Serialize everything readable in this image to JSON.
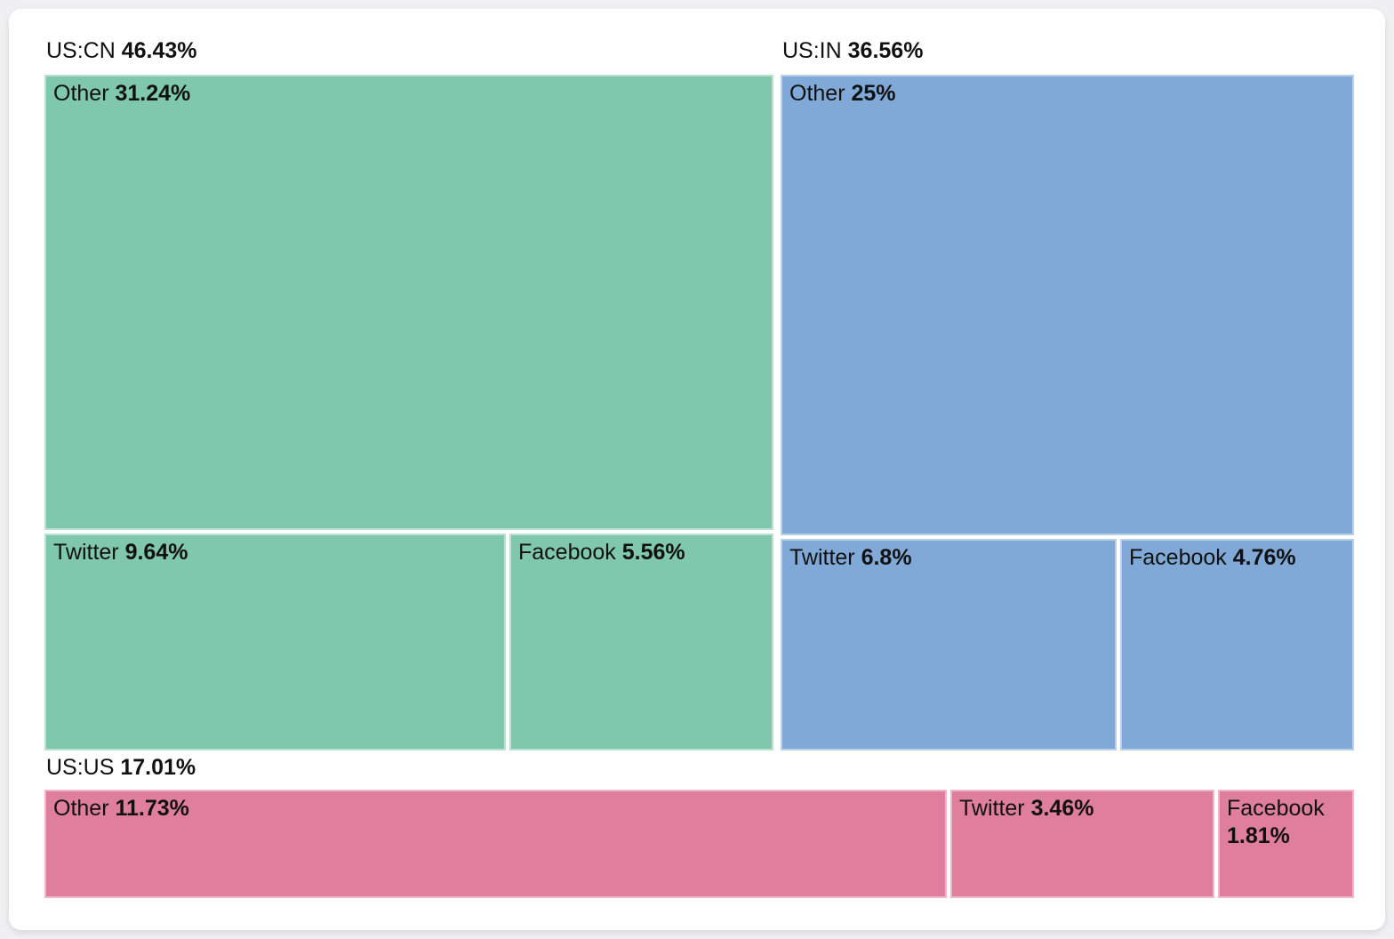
{
  "chart_data": {
    "type": "treemap",
    "legend": "none",
    "unit": "%",
    "groups": [
      {
        "label": "US:CN",
        "value": 46.43,
        "value_label": "46.43%",
        "color": "#7fc8ab",
        "children": [
          {
            "label": "Other",
            "value": 31.24,
            "value_label": "31.24%"
          },
          {
            "label": "Twitter",
            "value": 9.64,
            "value_label": "9.64%"
          },
          {
            "label": "Facebook",
            "value": 5.56,
            "value_label": "5.56%"
          }
        ]
      },
      {
        "label": "US:IN",
        "value": 36.56,
        "value_label": "36.56%",
        "color": "#80a9d7",
        "children": [
          {
            "label": "Other",
            "value": 25,
            "value_label": "25%"
          },
          {
            "label": "Twitter",
            "value": 6.8,
            "value_label": "6.8%"
          },
          {
            "label": "Facebook",
            "value": 4.76,
            "value_label": "4.76%"
          }
        ]
      },
      {
        "label": "US:US",
        "value": 17.01,
        "value_label": "17.01%",
        "color": "#df7e9d",
        "children": [
          {
            "label": "Other",
            "value": 11.73,
            "value_label": "11.73%"
          },
          {
            "label": "Twitter",
            "value": 3.46,
            "value_label": "3.46%"
          },
          {
            "label": "Facebook",
            "value": 1.81,
            "value_label": "1.81%"
          }
        ]
      }
    ],
    "colors": {
      "page_background": "#f0f0f2",
      "card_background": "#ffffff",
      "label_text": "#111111"
    }
  }
}
